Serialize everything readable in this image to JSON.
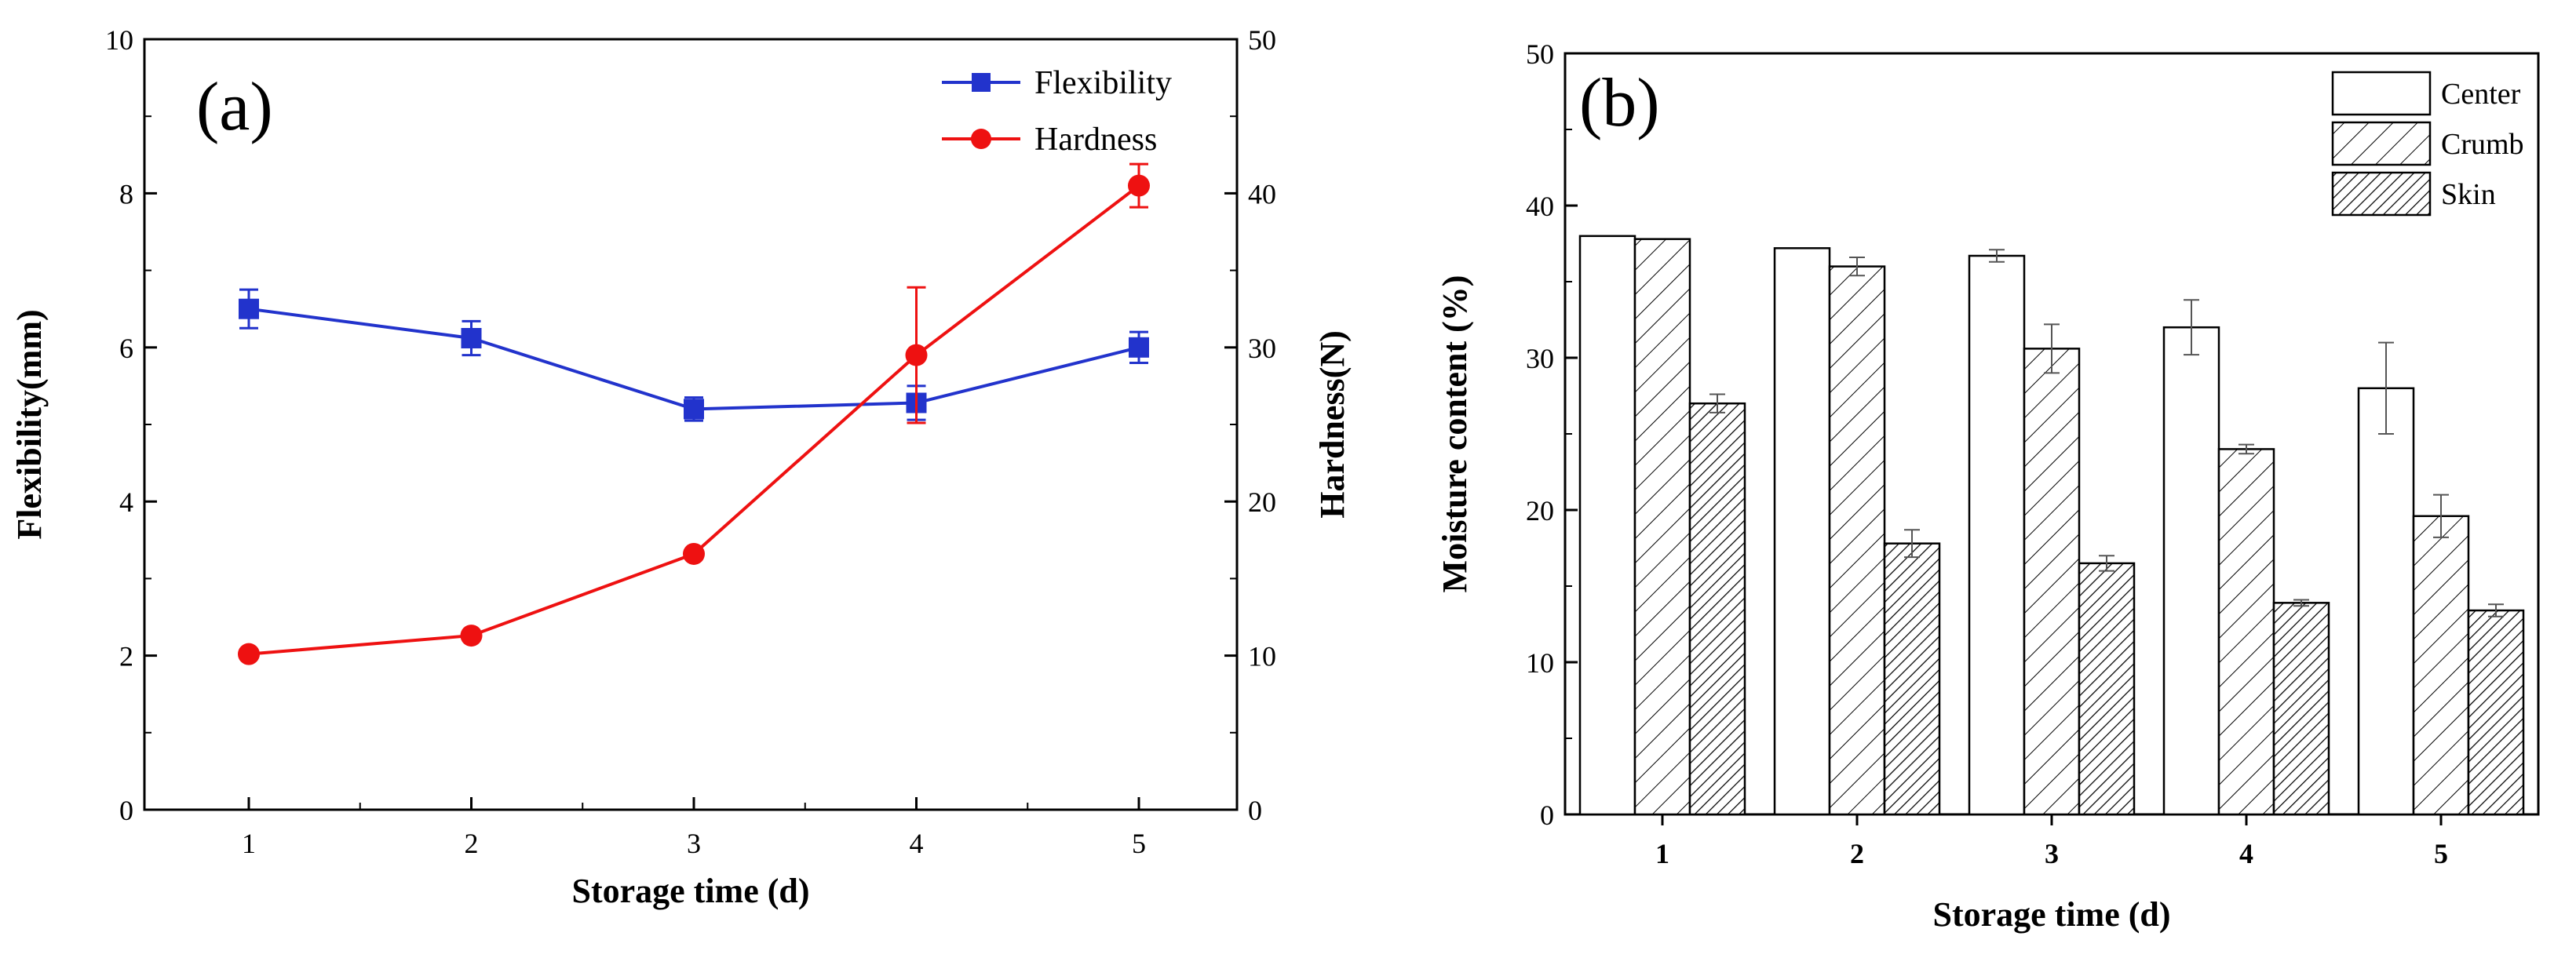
{
  "chart_data": [
    {
      "type": "line",
      "panel_label": "(a)",
      "x": [
        1,
        2,
        3,
        4,
        5
      ],
      "x_ticks": [
        "1",
        "2",
        "3",
        "4",
        "5"
      ],
      "xlabel": "Storage time (d)",
      "ylabel": "Flexibility(mm)",
      "ylim": [
        0,
        10
      ],
      "y_ticks": [
        "0",
        "2",
        "4",
        "6",
        "8",
        "10"
      ],
      "ylabel_right": "Hardness(N)",
      "ylim_right": [
        0,
        50
      ],
      "y_ticks_right": [
        "0",
        "10",
        "20",
        "30",
        "40",
        "50"
      ],
      "legend_position": "top-right",
      "series": [
        {
          "name": "Flexibility",
          "axis": "left",
          "color": "#2233cc",
          "marker": "square",
          "values": [
            6.5,
            6.12,
            5.2,
            5.28,
            6.0
          ],
          "errors": [
            0.25,
            0.22,
            0.15,
            0.22,
            0.2
          ]
        },
        {
          "name": "Hardness",
          "axis": "right",
          "color": "#ee1111",
          "marker": "circle",
          "values": [
            10.1,
            11.3,
            16.6,
            29.5,
            40.5
          ],
          "errors": [
            0.3,
            0.3,
            0.3,
            4.4,
            1.4
          ]
        }
      ]
    },
    {
      "type": "bar",
      "panel_label": "(b)",
      "categories": [
        "1",
        "2",
        "3",
        "4",
        "5"
      ],
      "xlabel": "Storage time (d)",
      "ylabel": "Moisture content (%)",
      "ylim": [
        0,
        50
      ],
      "y_ticks": [
        "0",
        "10",
        "20",
        "30",
        "40",
        "50"
      ],
      "legend_position": "top-right",
      "series": [
        {
          "name": "Center",
          "pattern": "none",
          "values": [
            38.0,
            37.2,
            36.7,
            32.0,
            28.0
          ],
          "errors": [
            0,
            0,
            0.4,
            1.8,
            3.0
          ]
        },
        {
          "name": "Crumb",
          "pattern": "hatch",
          "values": [
            37.8,
            36.0,
            30.6,
            24.0,
            19.6
          ],
          "errors": [
            0,
            0.6,
            1.6,
            0.3,
            1.4
          ]
        },
        {
          "name": "Skin",
          "pattern": "dense",
          "values": [
            27.0,
            17.8,
            16.5,
            13.9,
            13.4
          ],
          "errors": [
            0.6,
            0.9,
            0.5,
            0.2,
            0.4
          ]
        }
      ]
    }
  ]
}
